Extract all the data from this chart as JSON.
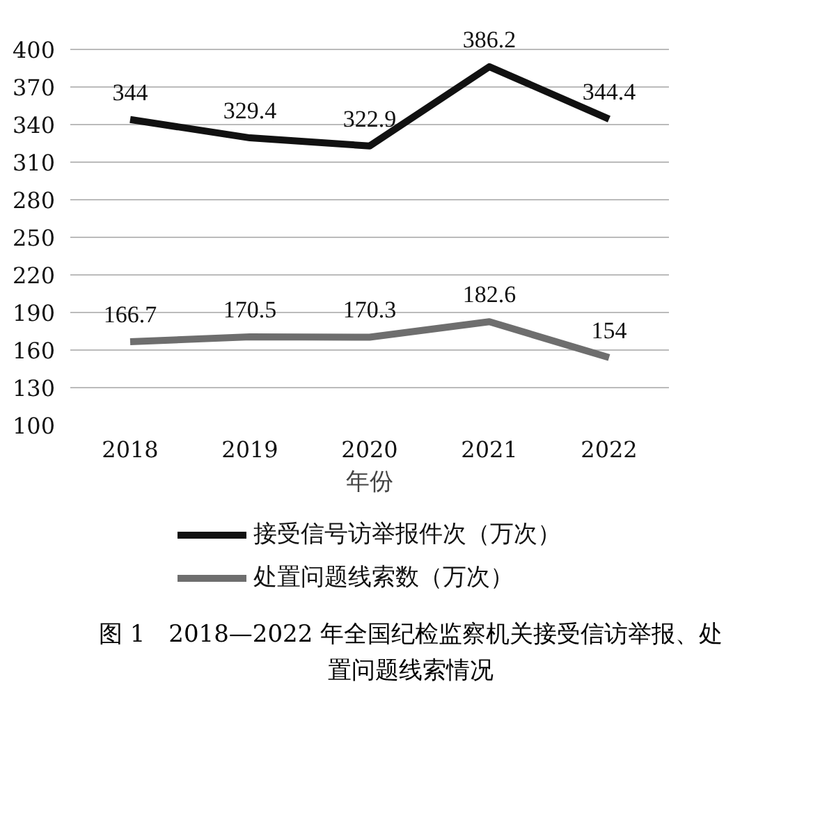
{
  "chart_data": {
    "type": "line",
    "title": "图 1　2018—2022 年全国纪检监察机关接受信访举报、处置问题线索情况",
    "xlabel": "年份",
    "categories": [
      "2018",
      "2019",
      "2020",
      "2021",
      "2022"
    ],
    "series": [
      {
        "name": "接受信号访举报件次（万次）",
        "color": "#111111",
        "values": [
          344,
          329.4,
          322.9,
          386.2,
          344.4
        ]
      },
      {
        "name": "处置问题线索数（万次）",
        "color": "#6e6e6e",
        "values": [
          166.7,
          170.5,
          170.3,
          182.6,
          154
        ]
      }
    ],
    "ylim": [
      100,
      400
    ],
    "yticks": [
      100,
      130,
      160,
      190,
      220,
      250,
      280,
      310,
      340,
      370,
      400
    ],
    "grid": "y",
    "legend": "bottom",
    "data_labels": true,
    "marker": "none",
    "line_style": "solid"
  }
}
